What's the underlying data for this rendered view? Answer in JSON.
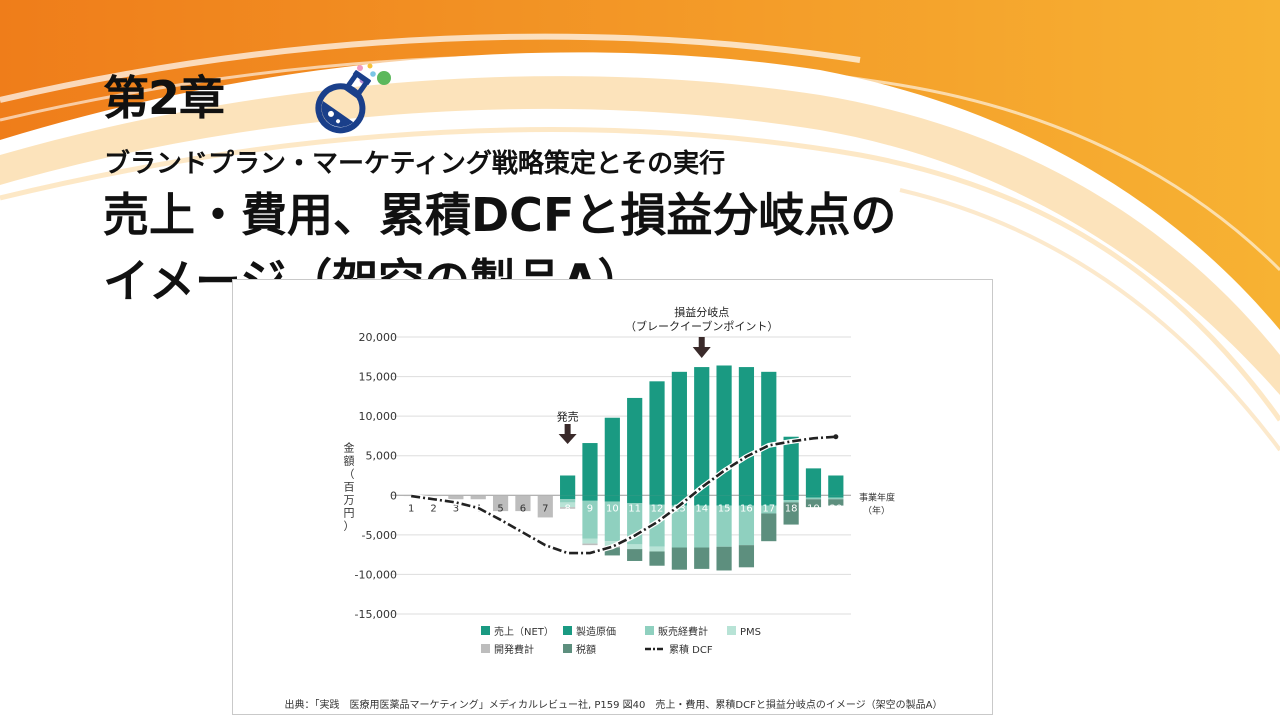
{
  "slide": {
    "chapter": "第2章",
    "subtitle": "ブランドプラン・マーケティング戦略策定とその実行",
    "title_line1": "売上・費用、累積DCFと損益分岐点の",
    "title_line2": "イメージ（架空の製品A）",
    "source": "出典：「実践　医療用医薬品マーケティング」メディカルレビュー社, P159 図40　売上・費用、累積DCFと損益分岐点のイメージ（架空の製品A）"
  },
  "colors": {
    "sales": "#1a9a82",
    "cogs": "#1a9a82",
    "sga": "#8fd0bf",
    "pms": "#b8e3d6",
    "rnd": "#bdbdbd",
    "tax": "#5d8f7e",
    "dcf": "#222222",
    "orange": "#f28a1e"
  },
  "chart_data": {
    "type": "bar",
    "x": [
      1,
      2,
      3,
      4,
      5,
      6,
      7,
      8,
      9,
      10,
      11,
      12,
      13,
      14,
      15,
      16,
      17,
      18,
      19,
      20
    ],
    "ylabel": "金額（百万円）",
    "xlabel": "事業年度（年）",
    "ylim": [
      -15000,
      20000
    ],
    "yticks": [
      "20,000",
      "15,000",
      "10,000",
      "5,000",
      "0",
      "-5,000",
      "-10,000",
      "-15,000"
    ],
    "series": [
      {
        "name": "売上（NET）",
        "key": "sales",
        "values": [
          0,
          0,
          0,
          0,
          0,
          0,
          0,
          2500,
          6600,
          9800,
          12300,
          14400,
          15600,
          16200,
          16400,
          16200,
          15600,
          7400,
          3400,
          2500
        ]
      },
      {
        "name": "製造原価",
        "key": "cogs",
        "values": [
          0,
          0,
          0,
          0,
          0,
          0,
          0,
          -500,
          -700,
          -800,
          -1000,
          -1200,
          -1300,
          -1300,
          -1300,
          -1300,
          -1300,
          -600,
          -300,
          -300
        ]
      },
      {
        "name": "販売経費計",
        "key": "sga",
        "values": [
          0,
          0,
          0,
          0,
          0,
          0,
          0,
          -400,
          -4800,
          -5000,
          -5200,
          -5300,
          -5300,
          -5300,
          -5200,
          -5000,
          -1000,
          -300,
          -200,
          -200
        ]
      },
      {
        "name": "PMS",
        "key": "pms",
        "values": [
          0,
          0,
          0,
          0,
          0,
          0,
          0,
          -600,
          -600,
          -600,
          -600,
          -600,
          0,
          0,
          0,
          0,
          0,
          0,
          0,
          0
        ]
      },
      {
        "name": "開発費計",
        "key": "rnd",
        "values": [
          -100,
          -100,
          -500,
          -500,
          -2000,
          -2000,
          -2800,
          -200,
          -200,
          -200,
          0,
          0,
          0,
          0,
          0,
          0,
          0,
          0,
          0,
          0
        ]
      },
      {
        "name": "税額",
        "key": "tax",
        "values": [
          0,
          0,
          0,
          0,
          0,
          0,
          0,
          0,
          0,
          -1000,
          -1500,
          -1800,
          -2800,
          -2700,
          -3000,
          -2800,
          -3500,
          -2800,
          -1000,
          -800
        ]
      },
      {
        "name": "累積 DCF",
        "key": "dcf",
        "values": [
          -100,
          -500,
          -900,
          -1600,
          -3100,
          -4700,
          -6300,
          -7300,
          -7300,
          -6500,
          -5100,
          -3400,
          -1300,
          1000,
          3100,
          4900,
          6300,
          6800,
          7200,
          7400
        ]
      }
    ],
    "annotations": [
      {
        "text": "発売",
        "x": 8
      },
      {
        "text": "損益分岐点",
        "text2": "（ブレークイーブンポイント）",
        "x": 14
      }
    ],
    "legend": [
      [
        "売上（NET）",
        "sales"
      ],
      [
        "製造原価",
        "cogs"
      ],
      [
        "販売経費計",
        "sga"
      ],
      [
        "PMS",
        "pms"
      ],
      [
        "開発費計",
        "rnd"
      ],
      [
        "税額",
        "tax"
      ],
      [
        "累積 DCF",
        "dcf"
      ]
    ]
  }
}
